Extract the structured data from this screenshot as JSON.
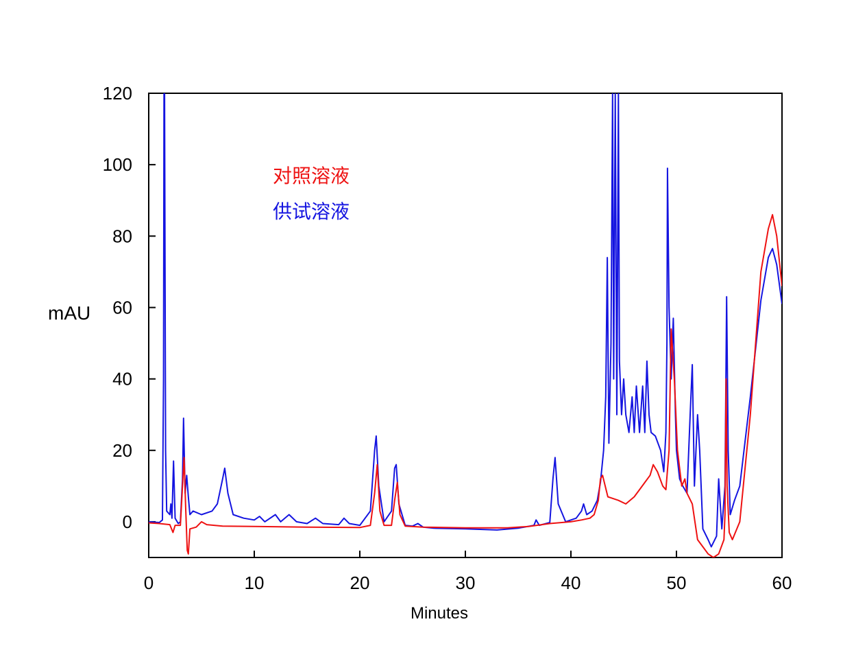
{
  "chart_data": {
    "type": "line",
    "title": "",
    "xlabel": "Minutes",
    "ylabel": "mAU",
    "xlim": [
      0,
      60
    ],
    "ylim": [
      -10,
      120
    ],
    "xticks": [
      0,
      10,
      20,
      30,
      40,
      50,
      60
    ],
    "yticks": [
      0,
      20,
      40,
      60,
      80,
      100,
      120
    ],
    "grid": false,
    "legend_position": "top-left",
    "series": [
      {
        "name": "对照溶液",
        "color": "#ee1111",
        "points": [
          [
            0,
            -0.3
          ],
          [
            1,
            -0.5
          ],
          [
            2,
            -0.8
          ],
          [
            2.3,
            -3
          ],
          [
            2.5,
            -1
          ],
          [
            3,
            -1
          ],
          [
            3.2,
            10
          ],
          [
            3.35,
            18
          ],
          [
            3.5,
            4
          ],
          [
            3.65,
            -8
          ],
          [
            3.75,
            -9
          ],
          [
            3.9,
            -2
          ],
          [
            4.5,
            -1.5
          ],
          [
            5,
            0
          ],
          [
            5.5,
            -0.8
          ],
          [
            7,
            -1.2
          ],
          [
            10,
            -1.3
          ],
          [
            15,
            -1.5
          ],
          [
            20,
            -1.6
          ],
          [
            21,
            -1
          ],
          [
            21.4,
            8
          ],
          [
            21.65,
            16
          ],
          [
            21.9,
            3
          ],
          [
            22.3,
            -1
          ],
          [
            23,
            -1
          ],
          [
            23.3,
            6
          ],
          [
            23.55,
            11
          ],
          [
            23.8,
            2
          ],
          [
            24.3,
            -1.2
          ],
          [
            26,
            -1.5
          ],
          [
            30,
            -1.7
          ],
          [
            34,
            -1.7
          ],
          [
            36,
            -1.3
          ],
          [
            38,
            -0.5
          ],
          [
            40,
            0
          ],
          [
            41,
            0.5
          ],
          [
            41.8,
            1
          ],
          [
            42.2,
            2
          ],
          [
            42.6,
            6
          ],
          [
            42.8,
            12
          ],
          [
            43,
            13
          ],
          [
            43.5,
            7
          ],
          [
            44.5,
            6
          ],
          [
            45.2,
            5
          ],
          [
            45.6,
            6
          ],
          [
            46,
            7
          ],
          [
            46.5,
            9
          ],
          [
            47,
            11
          ],
          [
            47.5,
            13
          ],
          [
            47.8,
            16
          ],
          [
            48.2,
            14
          ],
          [
            48.7,
            10
          ],
          [
            49,
            9
          ],
          [
            49.3,
            20
          ],
          [
            49.5,
            54
          ],
          [
            49.8,
            40
          ],
          [
            50.1,
            20
          ],
          [
            50.5,
            10
          ],
          [
            50.8,
            12
          ],
          [
            51,
            8
          ],
          [
            51.5,
            5
          ],
          [
            52,
            -5
          ],
          [
            52.5,
            -7
          ],
          [
            53,
            -9
          ],
          [
            53.5,
            -10
          ],
          [
            54,
            -9
          ],
          [
            54.5,
            -5
          ],
          [
            54.6,
            2
          ],
          [
            54.7,
            40
          ],
          [
            54.8,
            10
          ],
          [
            55,
            -3
          ],
          [
            55.3,
            -5
          ],
          [
            56,
            0
          ],
          [
            57,
            30
          ],
          [
            58,
            70
          ],
          [
            58.7,
            82
          ],
          [
            59.1,
            86
          ],
          [
            59.5,
            80
          ],
          [
            60,
            66
          ]
        ]
      },
      {
        "name": "供试溶液",
        "color": "#1414e0",
        "points": [
          [
            0,
            0
          ],
          [
            1,
            -0.2
          ],
          [
            1.3,
            0.5
          ],
          [
            1.4,
            40
          ],
          [
            1.45,
            120
          ],
          [
            1.5,
            120
          ],
          [
            1.6,
            20
          ],
          [
            1.7,
            3
          ],
          [
            2,
            2
          ],
          [
            2.1,
            5
          ],
          [
            2.2,
            1
          ],
          [
            2.35,
            17
          ],
          [
            2.5,
            1
          ],
          [
            2.8,
            -0.5
          ],
          [
            3,
            0
          ],
          [
            3.2,
            12
          ],
          [
            3.3,
            29
          ],
          [
            3.45,
            8
          ],
          [
            3.6,
            13
          ],
          [
            3.75,
            7
          ],
          [
            3.9,
            2
          ],
          [
            4.2,
            3
          ],
          [
            5,
            2
          ],
          [
            6,
            3
          ],
          [
            6.5,
            5
          ],
          [
            7,
            12
          ],
          [
            7.2,
            15
          ],
          [
            7.5,
            8
          ],
          [
            8,
            2
          ],
          [
            9,
            1
          ],
          [
            10,
            0.5
          ],
          [
            10.5,
            1.5
          ],
          [
            11,
            0
          ],
          [
            12,
            2
          ],
          [
            12.5,
            0
          ],
          [
            13.3,
            2
          ],
          [
            14,
            0
          ],
          [
            15,
            -0.5
          ],
          [
            15.8,
            1
          ],
          [
            16.5,
            -0.5
          ],
          [
            18,
            -0.8
          ],
          [
            18.5,
            1
          ],
          [
            19,
            -0.5
          ],
          [
            20,
            -1
          ],
          [
            21,
            3
          ],
          [
            21.4,
            20
          ],
          [
            21.55,
            24
          ],
          [
            21.8,
            10
          ],
          [
            22.3,
            0
          ],
          [
            23,
            3
          ],
          [
            23.3,
            15
          ],
          [
            23.45,
            16
          ],
          [
            23.7,
            5
          ],
          [
            24.3,
            -1
          ],
          [
            25,
            -1.2
          ],
          [
            25.5,
            -0.5
          ],
          [
            26,
            -1.5
          ],
          [
            27,
            -1.8
          ],
          [
            30,
            -2
          ],
          [
            33,
            -2.3
          ],
          [
            35,
            -1.8
          ],
          [
            36.5,
            -1
          ],
          [
            36.7,
            0.5
          ],
          [
            37,
            -1
          ],
          [
            38,
            -0.2
          ],
          [
            38.3,
            12
          ],
          [
            38.5,
            18
          ],
          [
            38.8,
            5
          ],
          [
            39.5,
            0
          ],
          [
            40.5,
            1
          ],
          [
            41,
            3
          ],
          [
            41.2,
            5
          ],
          [
            41.5,
            2
          ],
          [
            42,
            3
          ],
          [
            42.5,
            6
          ],
          [
            42.8,
            11
          ],
          [
            43.1,
            20
          ],
          [
            43.3,
            35
          ],
          [
            43.45,
            74
          ],
          [
            43.6,
            22
          ],
          [
            43.8,
            50
          ],
          [
            43.95,
            120
          ],
          [
            44.05,
            40
          ],
          [
            44.2,
            120
          ],
          [
            44.35,
            30
          ],
          [
            44.5,
            120
          ],
          [
            44.6,
            45
          ],
          [
            44.8,
            30
          ],
          [
            45,
            40
          ],
          [
            45.2,
            30
          ],
          [
            45.5,
            25
          ],
          [
            45.8,
            35
          ],
          [
            46,
            25
          ],
          [
            46.2,
            38
          ],
          [
            46.5,
            25
          ],
          [
            46.8,
            38
          ],
          [
            47,
            25
          ],
          [
            47.2,
            45
          ],
          [
            47.4,
            30
          ],
          [
            47.6,
            25
          ],
          [
            48,
            24
          ],
          [
            48.5,
            20
          ],
          [
            48.8,
            14
          ],
          [
            49,
            25
          ],
          [
            49.1,
            50
          ],
          [
            49.15,
            99
          ],
          [
            49.3,
            60
          ],
          [
            49.5,
            40
          ],
          [
            49.7,
            57
          ],
          [
            49.9,
            30
          ],
          [
            50,
            20
          ],
          [
            50.3,
            12
          ],
          [
            50.6,
            10
          ],
          [
            51,
            8
          ],
          [
            51.3,
            30
          ],
          [
            51.5,
            44
          ],
          [
            51.7,
            10
          ],
          [
            52,
            30
          ],
          [
            52.2,
            20
          ],
          [
            52.5,
            -2
          ],
          [
            53,
            -5
          ],
          [
            53.3,
            -7
          ],
          [
            53.8,
            -4
          ],
          [
            54,
            12
          ],
          [
            54.3,
            -2
          ],
          [
            54.6,
            10
          ],
          [
            54.75,
            63
          ],
          [
            54.9,
            20
          ],
          [
            55.1,
            2
          ],
          [
            55.5,
            6
          ],
          [
            56,
            10
          ],
          [
            57,
            35
          ],
          [
            58,
            62
          ],
          [
            58.7,
            74
          ],
          [
            59.1,
            76.5
          ],
          [
            59.5,
            72
          ],
          [
            60,
            61
          ]
        ]
      }
    ]
  }
}
